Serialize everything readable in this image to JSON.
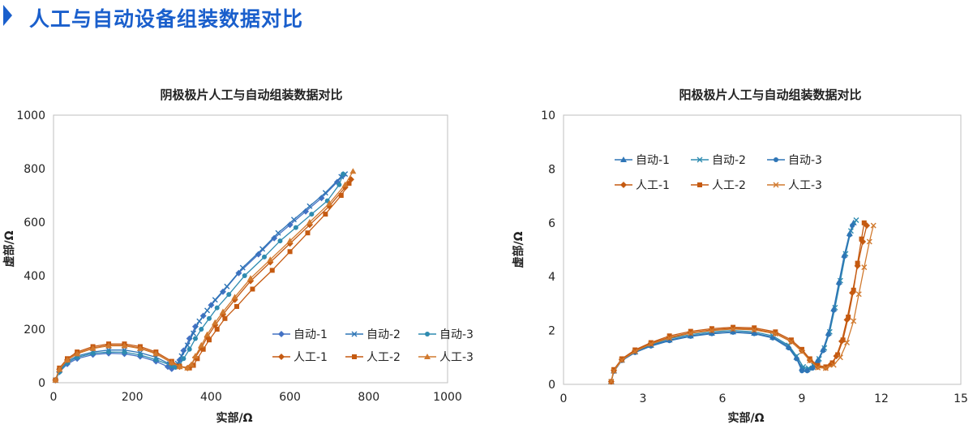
{
  "page": {
    "title": "人工与自动设备组装数据对比"
  },
  "chart_data": [
    {
      "type": "scatter",
      "mode": "lines+markers",
      "title": "阴极极片人工与自动组装数据对比",
      "xlabel": "实部/Ω",
      "ylabel": "虚部/Ω",
      "xlim": [
        0,
        1000
      ],
      "ylim": [
        0,
        1000
      ],
      "xticks": [
        "0",
        "200",
        "400",
        "600",
        "800",
        "1000"
      ],
      "yticks": [
        "0",
        "200",
        "400",
        "600",
        "800",
        "1000"
      ],
      "grid": false,
      "legend_position": "lower-right",
      "series": [
        {
          "name": "自动-1",
          "color": "#4472c4",
          "marker": "diamond",
          "x": [
            5,
            15,
            35,
            60,
            100,
            140,
            180,
            220,
            260,
            290,
            300,
            310,
            320,
            330,
            345,
            360,
            380,
            400,
            430,
            470,
            520,
            560,
            600,
            640,
            680,
            720,
            735
          ],
          "y": [
            10,
            40,
            70,
            90,
            105,
            110,
            108,
            98,
            80,
            60,
            52,
            60,
            85,
            120,
            165,
            210,
            250,
            290,
            340,
            410,
            480,
            540,
            590,
            640,
            690,
            750,
            775
          ]
        },
        {
          "name": "自动-2",
          "color": "#2e75b6",
          "marker": "x",
          "x": [
            5,
            15,
            35,
            60,
            100,
            140,
            180,
            220,
            260,
            295,
            305,
            315,
            325,
            340,
            355,
            370,
            390,
            410,
            440,
            480,
            530,
            570,
            610,
            650,
            690,
            730,
            740
          ],
          "y": [
            10,
            45,
            80,
            100,
            115,
            122,
            122,
            112,
            95,
            70,
            62,
            72,
            100,
            140,
            185,
            230,
            270,
            310,
            360,
            430,
            500,
            560,
            610,
            660,
            710,
            770,
            780
          ]
        },
        {
          "name": "自动-3",
          "color": "#2e8bb0",
          "marker": "circle",
          "x": [
            5,
            15,
            35,
            60,
            100,
            140,
            180,
            220,
            260,
            300,
            310,
            320,
            330,
            345,
            360,
            375,
            395,
            415,
            445,
            485,
            535,
            575,
            615,
            655,
            695,
            725,
            735
          ],
          "y": [
            10,
            40,
            75,
            95,
            110,
            115,
            114,
            104,
            86,
            64,
            58,
            66,
            90,
            125,
            165,
            200,
            240,
            280,
            330,
            400,
            470,
            530,
            580,
            630,
            680,
            740,
            780
          ]
        },
        {
          "name": "人工-1",
          "color": "#c55a11",
          "marker": "diamond",
          "x": [
            5,
            15,
            35,
            60,
            100,
            140,
            180,
            220,
            260,
            300,
            320,
            340,
            350,
            360,
            375,
            390,
            410,
            430,
            460,
            500,
            550,
            600,
            650,
            700,
            740,
            755
          ],
          "y": [
            10,
            50,
            85,
            110,
            130,
            140,
            140,
            130,
            110,
            75,
            60,
            55,
            65,
            95,
            130,
            170,
            215,
            255,
            310,
            380,
            450,
            520,
            590,
            660,
            730,
            760
          ]
        },
        {
          "name": "人工-2",
          "color": "#c55a11",
          "marker": "square",
          "x": [
            5,
            15,
            35,
            60,
            100,
            140,
            180,
            220,
            260,
            300,
            320,
            345,
            355,
            365,
            380,
            395,
            415,
            435,
            465,
            505,
            555,
            600,
            645,
            690,
            730,
            750
          ],
          "y": [
            10,
            55,
            90,
            115,
            135,
            145,
            145,
            135,
            115,
            80,
            62,
            55,
            65,
            90,
            125,
            160,
            200,
            240,
            285,
            350,
            420,
            490,
            560,
            630,
            700,
            745
          ]
        },
        {
          "name": "人工-3",
          "color": "#d17a2f",
          "marker": "triangle",
          "x": [
            5,
            15,
            35,
            60,
            100,
            140,
            180,
            220,
            260,
            300,
            320,
            340,
            350,
            360,
            375,
            390,
            410,
            430,
            460,
            500,
            550,
            600,
            650,
            700,
            740,
            760
          ],
          "y": [
            10,
            50,
            85,
            108,
            128,
            138,
            138,
            128,
            108,
            75,
            60,
            55,
            68,
            100,
            140,
            180,
            225,
            265,
            320,
            390,
            460,
            530,
            600,
            670,
            740,
            790
          ]
        }
      ]
    },
    {
      "type": "scatter",
      "mode": "lines+markers",
      "title": "阳极极片人工与自动组装数据对比",
      "xlabel": "实部/Ω",
      "ylabel": "虚部/Ω",
      "xlim": [
        0,
        15
      ],
      "ylim": [
        0,
        10
      ],
      "xticks": [
        "0",
        "3",
        "6",
        "9",
        "12",
        "15"
      ],
      "yticks": [
        "0",
        "2",
        "4",
        "6",
        "8",
        "10"
      ],
      "grid": false,
      "legend_position": "top-left",
      "series": [
        {
          "name": "自动-1",
          "color": "#2e75b6",
          "marker": "triangle",
          "x": [
            1.8,
            1.9,
            2.2,
            2.7,
            3.3,
            4,
            4.8,
            5.6,
            6.4,
            7.2,
            7.9,
            8.5,
            8.8,
            9.0,
            9.2,
            9.4,
            9.6,
            9.8,
            10.0,
            10.2,
            10.4,
            10.6,
            10.8,
            10.95
          ],
          "y": [
            0.1,
            0.5,
            0.9,
            1.2,
            1.45,
            1.65,
            1.8,
            1.9,
            1.95,
            1.9,
            1.75,
            1.4,
            1.0,
            0.6,
            0.55,
            0.65,
            0.9,
            1.3,
            1.9,
            2.8,
            3.8,
            4.8,
            5.6,
            6.0
          ]
        },
        {
          "name": "自动-2",
          "color": "#2e8bb0",
          "marker": "x",
          "x": [
            1.8,
            1.9,
            2.2,
            2.7,
            3.3,
            4,
            4.8,
            5.6,
            6.4,
            7.2,
            7.9,
            8.5,
            8.8,
            9.05,
            9.25,
            9.45,
            9.65,
            9.85,
            10.05,
            10.25,
            10.45,
            10.65,
            10.85,
            11.05
          ],
          "y": [
            0.1,
            0.5,
            0.9,
            1.22,
            1.48,
            1.7,
            1.85,
            1.95,
            2.0,
            1.95,
            1.8,
            1.45,
            1.05,
            0.65,
            0.6,
            0.7,
            0.95,
            1.35,
            1.95,
            2.85,
            3.85,
            4.85,
            5.7,
            6.1
          ]
        },
        {
          "name": "自动-3",
          "color": "#2e75b6",
          "marker": "circle",
          "x": [
            1.8,
            1.9,
            2.2,
            2.7,
            3.3,
            4,
            4.8,
            5.6,
            6.4,
            7.2,
            7.9,
            8.5,
            8.8,
            9.0,
            9.2,
            9.4,
            9.6,
            9.8,
            10.0,
            10.2,
            10.4,
            10.6,
            10.8,
            10.9
          ],
          "y": [
            0.1,
            0.48,
            0.88,
            1.18,
            1.42,
            1.62,
            1.78,
            1.88,
            1.93,
            1.88,
            1.72,
            1.35,
            0.95,
            0.5,
            0.5,
            0.6,
            0.85,
            1.25,
            1.85,
            2.75,
            3.75,
            4.75,
            5.55,
            5.9
          ]
        },
        {
          "name": "人工-1",
          "color": "#c55a11",
          "marker": "diamond",
          "x": [
            1.8,
            1.9,
            2.2,
            2.7,
            3.3,
            4,
            4.8,
            5.6,
            6.4,
            7.2,
            8,
            8.6,
            9.0,
            9.3,
            9.6,
            9.9,
            10.1,
            10.3,
            10.5,
            10.7,
            10.9,
            11.1,
            11.3,
            11.45
          ],
          "y": [
            0.1,
            0.52,
            0.92,
            1.25,
            1.52,
            1.75,
            1.92,
            2.02,
            2.08,
            2.05,
            1.9,
            1.6,
            1.25,
            0.9,
            0.65,
            0.62,
            0.75,
            1.05,
            1.6,
            2.4,
            3.4,
            4.4,
            5.3,
            5.9
          ]
        },
        {
          "name": "人工-2",
          "color": "#c55a11",
          "marker": "square",
          "x": [
            1.8,
            1.9,
            2.2,
            2.7,
            3.3,
            4,
            4.8,
            5.6,
            6.4,
            7.2,
            8,
            8.6,
            9.0,
            9.3,
            9.6,
            9.9,
            10.15,
            10.35,
            10.55,
            10.75,
            10.95,
            11.1,
            11.25,
            11.35
          ],
          "y": [
            0.1,
            0.55,
            0.95,
            1.28,
            1.55,
            1.8,
            1.97,
            2.07,
            2.12,
            2.1,
            1.95,
            1.65,
            1.3,
            0.95,
            0.7,
            0.65,
            0.8,
            1.1,
            1.65,
            2.5,
            3.5,
            4.5,
            5.4,
            6.0
          ]
        },
        {
          "name": "人工-3",
          "color": "#d17a2f",
          "marker": "x",
          "x": [
            1.8,
            1.9,
            2.2,
            2.7,
            3.3,
            4,
            4.8,
            5.6,
            6.4,
            7.2,
            8,
            8.6,
            9.0,
            9.3,
            9.6,
            9.9,
            10.2,
            10.45,
            10.7,
            10.95,
            11.15,
            11.35,
            11.55,
            11.7
          ],
          "y": [
            0.1,
            0.5,
            0.9,
            1.22,
            1.5,
            1.72,
            1.9,
            2.0,
            2.05,
            2.02,
            1.88,
            1.58,
            1.22,
            0.88,
            0.62,
            0.6,
            0.72,
            1.0,
            1.55,
            2.35,
            3.35,
            4.35,
            5.3,
            5.9
          ]
        }
      ]
    }
  ]
}
